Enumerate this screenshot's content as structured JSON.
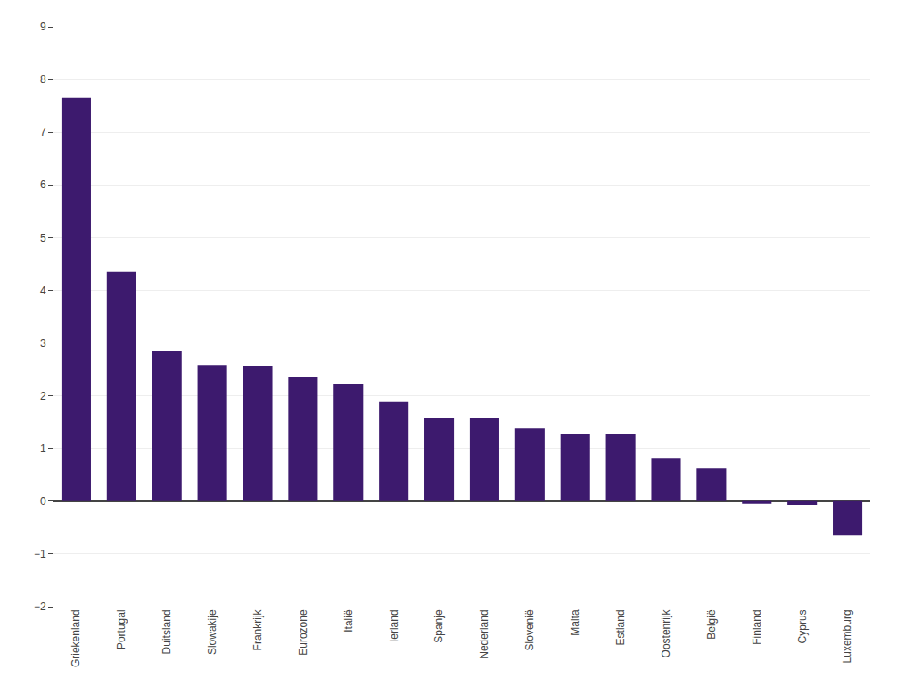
{
  "chart_data": {
    "type": "bar",
    "categories": [
      "Griekenland",
      "Portugal",
      "Duitsland",
      "Slowakije",
      "Frankrijk",
      "Eurozone",
      "Italië",
      "Ierland",
      "Spanje",
      "Nederland",
      "Slovenië",
      "Malta",
      "Estland",
      "Oostenrijk",
      "België",
      "Finland",
      "Cyprus",
      "Luxemburg"
    ],
    "values": [
      7.65,
      4.35,
      2.85,
      2.58,
      2.57,
      2.35,
      2.23,
      1.88,
      1.58,
      1.58,
      1.38,
      1.28,
      1.27,
      0.82,
      0.62,
      -0.05,
      -0.07,
      -0.65
    ],
    "color": "#3d1a6e",
    "ylim": [
      -2,
      9
    ],
    "yticks": [
      {
        "value": -2,
        "label": "−2"
      },
      {
        "value": -1,
        "label": "−1"
      },
      0,
      1,
      2,
      3,
      4,
      5,
      6,
      7,
      8,
      9
    ],
    "grid": true
  }
}
